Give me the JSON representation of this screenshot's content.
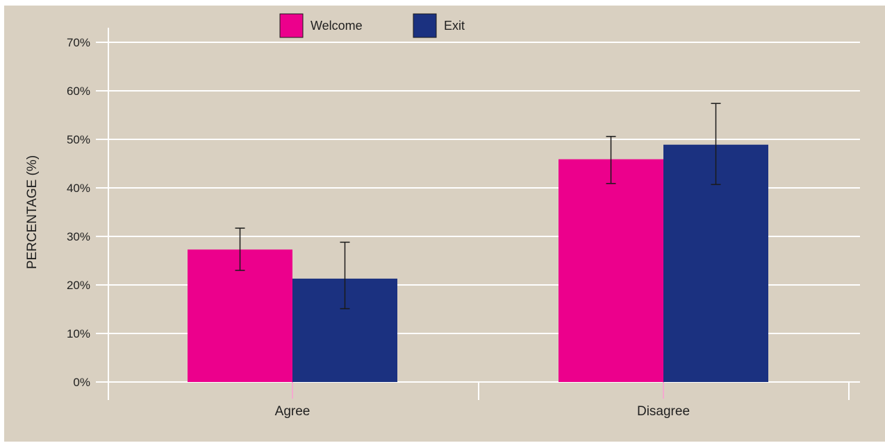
{
  "chart_data": {
    "type": "bar",
    "title": "",
    "xlabel": "",
    "ylabel": "PERCENTAGE (%)",
    "ylim": [
      0,
      70
    ],
    "yticks": [
      0,
      10,
      20,
      30,
      40,
      50,
      60,
      70
    ],
    "ytick_labels": [
      "0%",
      "10%",
      "20%",
      "30%",
      "40%",
      "50%",
      "60%",
      "70%"
    ],
    "categories": [
      "Agree",
      "Disagree"
    ],
    "series": [
      {
        "name": "Welcome",
        "color": "#ec008c",
        "values": [
          27.3,
          45.9
        ],
        "error_low": [
          23.0,
          40.9
        ],
        "error_high": [
          31.7,
          50.6
        ]
      },
      {
        "name": "Exit",
        "color": "#1b3180",
        "values": [
          21.3,
          48.9
        ],
        "error_low": [
          15.1,
          40.7
        ],
        "error_high": [
          28.8,
          57.4
        ]
      }
    ],
    "grid": "horizontal",
    "legend_position": "top-center"
  },
  "colors": {
    "background": "#d9d0c1",
    "gridline": "#ffffff",
    "error_bar": "#1a1a1a",
    "category_tick": "#f4a9cf"
  }
}
